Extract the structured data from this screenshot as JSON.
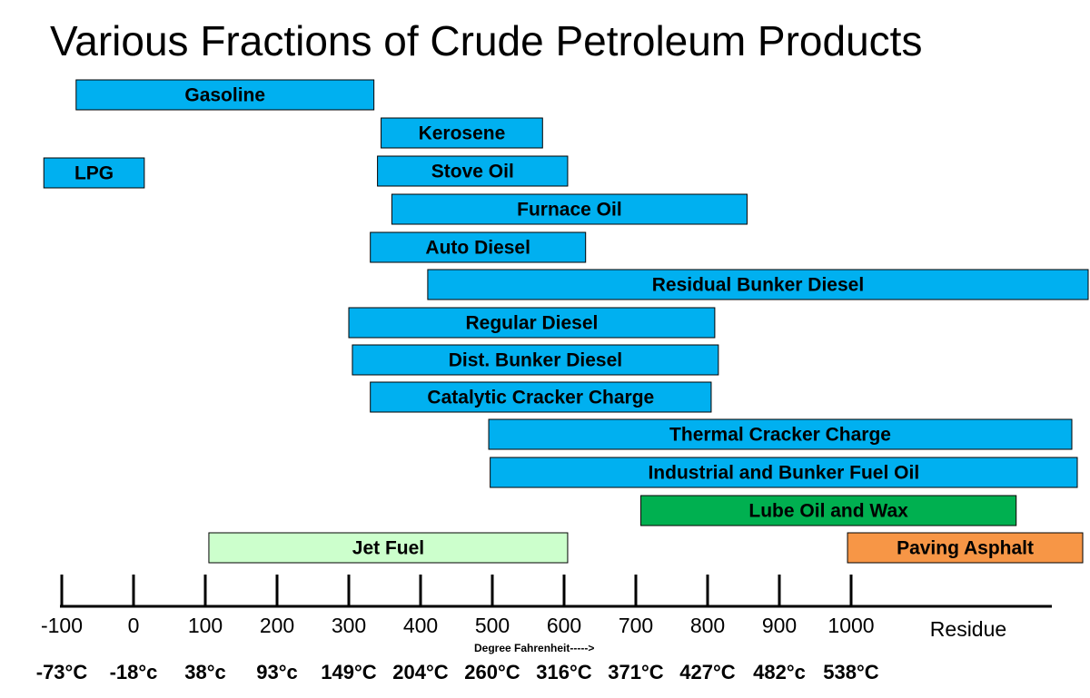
{
  "title": "Various Fractions of Crude Petroleum Products",
  "chart_data": {
    "type": "bar",
    "orientation": "horizontal-range",
    "title": "Various Fractions of Crude Petroleum Products",
    "xlabel": "Degree Fahrenheit----->",
    "xlim": [
      -100,
      1000
    ],
    "residue_label": "Residue",
    "x_ticks": [
      -100,
      0,
      100,
      200,
      300,
      400,
      500,
      600,
      700,
      800,
      900,
      1000
    ],
    "x_tick_labels": [
      "-100",
      "0",
      "100",
      "200",
      "300",
      "400",
      "500",
      "600",
      "700",
      "800",
      "900",
      "1000"
    ],
    "celsius_labels": [
      "-73°C",
      "-18°c",
      "38°c",
      "93°c",
      "149°C",
      "204°C",
      "260°C",
      "316°C",
      "371°C",
      "427°C",
      "482°c",
      "538°C"
    ],
    "colors": {
      "default": "#00b0f0",
      "lube": "#00b050",
      "jet": "#ccffcc",
      "asphalt": "#f79646"
    },
    "bars": [
      {
        "label": "Gasoline",
        "start": -80,
        "end": 335,
        "color": "default"
      },
      {
        "label": "Kerosene",
        "start": 345,
        "end": 570,
        "color": "default"
      },
      {
        "label": "LPG",
        "start": -125,
        "end": 15,
        "color": "default"
      },
      {
        "label": "Stove Oil",
        "start": 340,
        "end": 605,
        "color": "default"
      },
      {
        "label": "Furnace Oil",
        "start": 360,
        "end": 855,
        "color": "default"
      },
      {
        "label": "Auto Diesel",
        "start": 330,
        "end": 630,
        "color": "default"
      },
      {
        "label": "Residual Bunker Diesel",
        "start": 410,
        "end": "Residue",
        "color": "default"
      },
      {
        "label": "Regular Diesel",
        "start": 300,
        "end": 810,
        "color": "default"
      },
      {
        "label": "Dist. Bunker Diesel",
        "start": 305,
        "end": 815,
        "color": "default"
      },
      {
        "label": "Catalytic Cracker Charge",
        "start": 330,
        "end": 805,
        "color": "default"
      },
      {
        "label": "Thermal Cracker Charge",
        "start": 495,
        "end": "Residue",
        "color": "default"
      },
      {
        "label": "Industrial and Bunker Fuel Oil",
        "start": 497,
        "end": "Residue",
        "color": "default"
      },
      {
        "label": "Lube Oil and Wax",
        "start": 707,
        "end": 1230,
        "color": "lube"
      },
      {
        "label": "Jet Fuel",
        "start": 105,
        "end": 605,
        "color": "jet"
      },
      {
        "label": "Paving Asphalt",
        "start": 995,
        "end": "Residue",
        "color": "asphalt"
      }
    ]
  }
}
